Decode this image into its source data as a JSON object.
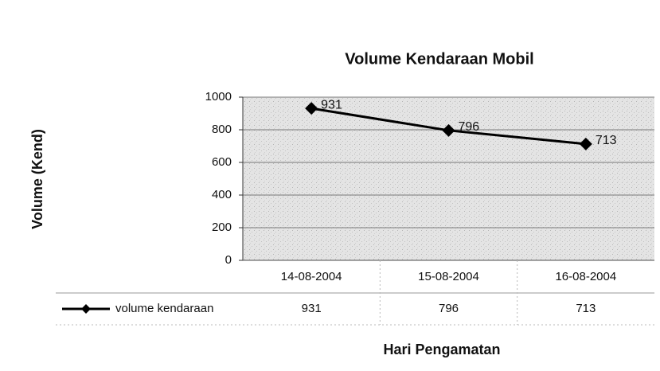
{
  "chart_data": {
    "type": "line",
    "title": "Volume Kendaraan Mobil",
    "x_label": "Hari Pengamatan",
    "y_label": "Volume (Kend)",
    "categories": [
      "14-08-2004",
      "15-08-2004",
      "16-08-2004"
    ],
    "series": [
      {
        "name": "volume kendaraan",
        "color": "#000000",
        "values": [
          931,
          796,
          713
        ]
      }
    ],
    "ylim": [
      0,
      1000
    ],
    "yticks": [
      0,
      200,
      400,
      600,
      800,
      1000
    ],
    "grid": true
  }
}
